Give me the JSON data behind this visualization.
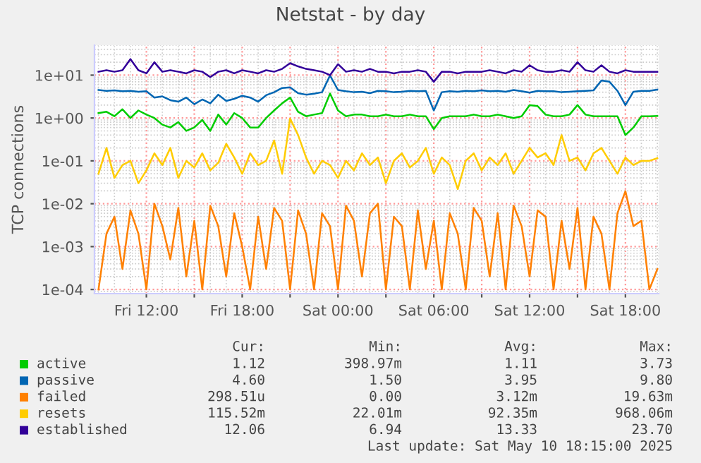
{
  "chart_data": {
    "type": "line",
    "title": "Netstat - by day",
    "ylabel": "TCP connections",
    "log": "y",
    "grid": true,
    "legend": "bottom",
    "marker": "none",
    "line_style": "solid",
    "ylim": [
      8e-05,
      50
    ],
    "yticks": [
      {
        "value": 0.0001,
        "label": "1e-04"
      },
      {
        "value": 0.001,
        "label": "1e-03"
      },
      {
        "value": 0.01,
        "label": "1e-02"
      },
      {
        "value": 0.1,
        "label": "1e-01"
      },
      {
        "value": 1,
        "label": "1e+00"
      },
      {
        "value": 10,
        "label": "1e+01"
      }
    ],
    "xlim": [
      "2025-05-09T08:45",
      "2025-05-10T20:05"
    ],
    "xticks": [
      {
        "value": "2025-05-09T12:00",
        "label": "Fri 12:00"
      },
      {
        "value": "2025-05-09T15:00",
        "label": null
      },
      {
        "value": "2025-05-09T18:00",
        "label": "Fri 18:00"
      },
      {
        "value": "2025-05-09T21:00",
        "label": null
      },
      {
        "value": "2025-05-10T00:00",
        "label": "Sat 00:00"
      },
      {
        "value": "2025-05-10T03:00",
        "label": null
      },
      {
        "value": "2025-05-10T06:00",
        "label": "Sat 06:00"
      },
      {
        "value": "2025-05-10T09:00",
        "label": null
      },
      {
        "value": "2025-05-10T12:00",
        "label": "Sat 12:00"
      },
      {
        "value": "2025-05-10T15:00",
        "label": null
      },
      {
        "value": "2025-05-10T18:00",
        "label": "Sat 18:00"
      }
    ],
    "x": [
      "2025-05-09T09:00",
      "2025-05-09T09:30",
      "2025-05-09T10:00",
      "2025-05-09T10:30",
      "2025-05-09T11:00",
      "2025-05-09T11:30",
      "2025-05-09T12:00",
      "2025-05-09T12:30",
      "2025-05-09T13:00",
      "2025-05-09T13:30",
      "2025-05-09T14:00",
      "2025-05-09T14:30",
      "2025-05-09T15:00",
      "2025-05-09T15:30",
      "2025-05-09T16:00",
      "2025-05-09T16:30",
      "2025-05-09T17:00",
      "2025-05-09T17:30",
      "2025-05-09T18:00",
      "2025-05-09T18:30",
      "2025-05-09T19:00",
      "2025-05-09T19:30",
      "2025-05-09T20:00",
      "2025-05-09T20:30",
      "2025-05-09T21:00",
      "2025-05-09T21:30",
      "2025-05-09T22:00",
      "2025-05-09T22:30",
      "2025-05-09T23:00",
      "2025-05-09T23:30",
      "2025-05-10T00:00",
      "2025-05-10T00:30",
      "2025-05-10T01:00",
      "2025-05-10T01:30",
      "2025-05-10T02:00",
      "2025-05-10T02:30",
      "2025-05-10T03:00",
      "2025-05-10T03:30",
      "2025-05-10T04:00",
      "2025-05-10T04:30",
      "2025-05-10T05:00",
      "2025-05-10T05:30",
      "2025-05-10T06:00",
      "2025-05-10T06:30",
      "2025-05-10T07:00",
      "2025-05-10T07:30",
      "2025-05-10T08:00",
      "2025-05-10T08:30",
      "2025-05-10T09:00",
      "2025-05-10T09:30",
      "2025-05-10T10:00",
      "2025-05-10T10:30",
      "2025-05-10T11:00",
      "2025-05-10T11:30",
      "2025-05-10T12:00",
      "2025-05-10T12:30",
      "2025-05-10T13:00",
      "2025-05-10T13:30",
      "2025-05-10T14:00",
      "2025-05-10T14:30",
      "2025-05-10T15:00",
      "2025-05-10T15:30",
      "2025-05-10T16:00",
      "2025-05-10T16:30",
      "2025-05-10T17:00",
      "2025-05-10T17:30",
      "2025-05-10T18:00",
      "2025-05-10T18:30",
      "2025-05-10T19:00",
      "2025-05-10T19:30",
      "2025-05-10T20:00"
    ],
    "series": [
      {
        "name": "active",
        "color": "#00cc00",
        "values": [
          1.3,
          1.4,
          1.1,
          1.6,
          1.0,
          1.5,
          1.2,
          1.0,
          0.7,
          0.6,
          0.8,
          0.5,
          0.6,
          0.9,
          0.5,
          1.2,
          0.7,
          1.3,
          1.0,
          0.6,
          0.6,
          1.0,
          1.5,
          2.2,
          3.0,
          1.4,
          1.1,
          1.2,
          1.3,
          3.73,
          1.5,
          1.1,
          1.2,
          1.2,
          1.1,
          1.1,
          1.2,
          1.1,
          1.1,
          1.2,
          1.1,
          1.1,
          0.55,
          1.0,
          1.1,
          1.1,
          1.1,
          1.2,
          1.1,
          1.1,
          1.2,
          1.1,
          1.0,
          1.1,
          2.0,
          1.9,
          1.2,
          1.1,
          1.1,
          1.2,
          2.0,
          1.2,
          1.1,
          1.1,
          1.1,
          1.1,
          0.4,
          0.6,
          1.1,
          1.1,
          1.12
        ]
      },
      {
        "name": "passive",
        "color": "#0066b3",
        "values": [
          4.5,
          4.3,
          4.4,
          4.2,
          4.3,
          4.1,
          4.2,
          3.0,
          3.2,
          2.6,
          2.4,
          3.0,
          2.1,
          2.7,
          2.2,
          3.5,
          2.5,
          2.8,
          3.3,
          3.0,
          2.4,
          3.4,
          4.0,
          5.0,
          5.2,
          3.8,
          3.5,
          3.7,
          4.0,
          9.8,
          4.5,
          4.2,
          4.0,
          4.1,
          3.8,
          4.3,
          4.2,
          4.0,
          4.1,
          4.3,
          4.2,
          4.3,
          1.5,
          4.0,
          4.2,
          4.1,
          4.3,
          4.2,
          4.4,
          4.2,
          4.3,
          4.1,
          4.5,
          4.2,
          3.9,
          4.3,
          4.2,
          4.2,
          4.0,
          4.1,
          4.2,
          4.3,
          4.4,
          7.5,
          7.0,
          4.3,
          2.0,
          4.1,
          4.3,
          4.3,
          4.6
        ]
      },
      {
        "name": "failed",
        "color": "#ff8000",
        "values": [
          0.0001,
          0.002,
          0.005,
          0.0003,
          0.007,
          0.002,
          0.0001,
          0.01,
          0.003,
          0.0005,
          0.008,
          0.0002,
          0.004,
          0.0001,
          0.009,
          0.003,
          0.0002,
          0.006,
          0.001,
          0.0001,
          0.005,
          0.0003,
          0.008,
          0.004,
          0.0001,
          0.007,
          0.002,
          0.0001,
          0.006,
          0.003,
          0.0001,
          0.009,
          0.004,
          0.0002,
          0.006,
          0.01,
          0.0001,
          0.005,
          0.003,
          0.0001,
          0.007,
          0.0003,
          0.004,
          0.0001,
          0.006,
          0.002,
          0.0001,
          0.008,
          0.004,
          0.0002,
          0.006,
          0.0001,
          0.009,
          0.003,
          0.0002,
          0.007,
          0.005,
          0.0001,
          0.004,
          0.0003,
          0.008,
          0.0001,
          0.005,
          0.002,
          0.0001,
          0.006,
          0.0196,
          0.003,
          0.004,
          0.0001,
          0.0003
        ]
      },
      {
        "name": "resets",
        "color": "#ffcc00",
        "values": [
          0.05,
          0.2,
          0.04,
          0.08,
          0.1,
          0.03,
          0.06,
          0.15,
          0.08,
          0.2,
          0.04,
          0.1,
          0.07,
          0.15,
          0.06,
          0.09,
          0.25,
          0.12,
          0.05,
          0.15,
          0.08,
          0.1,
          0.3,
          0.05,
          0.968,
          0.4,
          0.12,
          0.05,
          0.1,
          0.08,
          0.04,
          0.1,
          0.06,
          0.15,
          0.08,
          0.12,
          0.03,
          0.1,
          0.15,
          0.07,
          0.1,
          0.2,
          0.05,
          0.12,
          0.08,
          0.022,
          0.1,
          0.15,
          0.06,
          0.12,
          0.08,
          0.15,
          0.05,
          0.1,
          0.2,
          0.12,
          0.15,
          0.08,
          0.4,
          0.1,
          0.12,
          0.06,
          0.15,
          0.2,
          0.1,
          0.05,
          0.12,
          0.08,
          0.1,
          0.1,
          0.1155
        ]
      },
      {
        "name": "established",
        "color": "#330099",
        "values": [
          12,
          13,
          12,
          13,
          23.7,
          13,
          11,
          20,
          12,
          13,
          12,
          11,
          13,
          12,
          9,
          12,
          13,
          11,
          13,
          12,
          11,
          13,
          12,
          14,
          19,
          16,
          14,
          13,
          12,
          10,
          18,
          12,
          13,
          12,
          14,
          12,
          12,
          11,
          12,
          12,
          13,
          12,
          7,
          12,
          12,
          11,
          12,
          12,
          12,
          13,
          12,
          11,
          13,
          12,
          17,
          13,
          12,
          12,
          13,
          12,
          20,
          13,
          12,
          17,
          12,
          11,
          13,
          12,
          12,
          12,
          12
        ]
      }
    ],
    "annotations": [
      "Cur:",
      "Min:",
      "Avg:",
      "Max:",
      "1.12",
      "398.97m",
      "1.11",
      "3.73",
      "4.60",
      "1.50",
      "3.95",
      "9.80",
      "298.51u",
      "0.00",
      "3.12m",
      "19.63m",
      "115.52m",
      "22.01m",
      "92.35m",
      "968.06m",
      "12.06",
      "6.94",
      "13.33",
      "23.70",
      "Last update: Sat May 10 18:15:00 2025"
    ]
  }
}
